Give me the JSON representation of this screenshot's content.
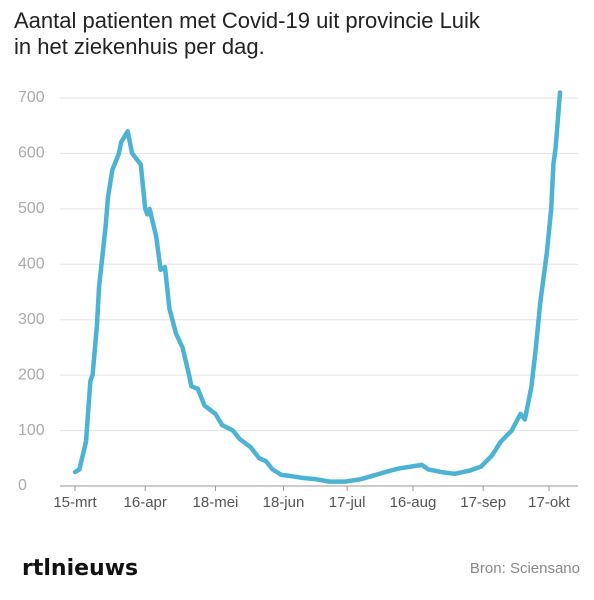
{
  "chart_data": {
    "type": "line",
    "title": [
      "Aantal patienten met Covid-19 uit provincie Luik",
      "in het ziekenhuis per dag."
    ],
    "x": [
      "15-mrt",
      "17-mrt",
      "20-mrt",
      "22-mrt",
      "23-mrt",
      "25-mrt",
      "26-mrt",
      "29-mrt",
      "30-mrt",
      "1-apr",
      "4-apr",
      "5-apr",
      "8-apr",
      "10-apr",
      "14-apr",
      "16-apr",
      "17-apr",
      "18-apr",
      "21-apr",
      "23-apr",
      "25-apr",
      "27-apr",
      "30-apr",
      "3-mei",
      "6-mei",
      "7-mei",
      "10-mei",
      "13-mei",
      "18-mei",
      "21-mei",
      "26-mei",
      "29-mei",
      "3-jun",
      "7-jun",
      "10-jun",
      "13-jun",
      "17-jun",
      "21-jun",
      "26-jun",
      "3-jul",
      "9-jul",
      "16-jul",
      "23-jul",
      "30-jul",
      "6-aug",
      "10-aug",
      "15-aug",
      "20-aug",
      "23-aug",
      "29-aug",
      "4-sep",
      "11-sep",
      "16-sep",
      "21-sep",
      "25-sep",
      "30-sep",
      "4-okt",
      "6-okt",
      "9-okt",
      "11-okt",
      "13-okt",
      "16-okt",
      "18-okt",
      "19-okt",
      "20-okt",
      "22-okt"
    ],
    "values": [
      25,
      30,
      80,
      190,
      200,
      290,
      360,
      470,
      520,
      570,
      600,
      620,
      640,
      600,
      580,
      500,
      490,
      500,
      450,
      390,
      395,
      320,
      275,
      250,
      200,
      180,
      175,
      145,
      130,
      110,
      100,
      85,
      70,
      50,
      45,
      30,
      20,
      18,
      15,
      12,
      8,
      8,
      12,
      20,
      28,
      32,
      35,
      38,
      30,
      25,
      22,
      28,
      35,
      55,
      80,
      100,
      130,
      120,
      180,
      250,
      330,
      420,
      500,
      580,
      610,
      710
    ],
    "color": "#4db3d4",
    "xticks": [
      "15-mrt",
      "16-apr",
      "18-mei",
      "18-jun",
      "17-jul",
      "16-aug",
      "17-sep",
      "17-okt"
    ],
    "ylim": [
      0,
      700
    ],
    "yticks": [
      0,
      100,
      200,
      300,
      400,
      500,
      600,
      700
    ],
    "grid": true
  },
  "footer": {
    "logo": "rtlnieuws",
    "source": "Bron: Sciensano"
  }
}
